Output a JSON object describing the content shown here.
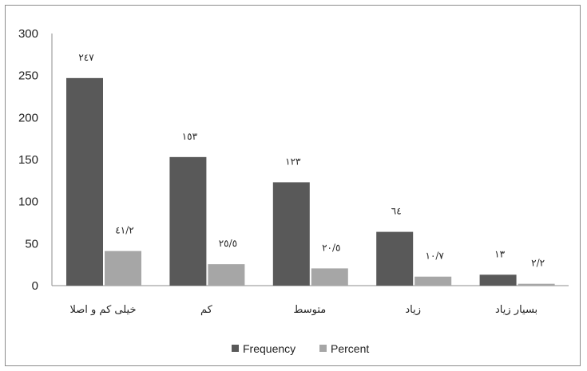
{
  "chart_data": {
    "type": "bar",
    "categories": [
      "خیلی کم و اصلا",
      "کم",
      "متوسط",
      "زیاد",
      "بسیار زیاد"
    ],
    "series": [
      {
        "name": "Frequency",
        "values": [
          247,
          153,
          123,
          64,
          13
        ],
        "labels": [
          "٢٤٧",
          "١٥٣",
          "١٢٣",
          "٦٤",
          "١٣"
        ],
        "color": "#595959"
      },
      {
        "name": "Percent",
        "values": [
          41.2,
          25.5,
          20.5,
          10.7,
          2.2
        ],
        "labels": [
          "٤١/٢",
          "٢٥/٥",
          "٢٠/٥",
          "١٠/٧",
          "٢/٢"
        ],
        "color": "#a6a6a6"
      }
    ],
    "yticks": [
      "0",
      "50",
      "100",
      "150",
      "200",
      "250",
      "300"
    ],
    "ylim": [
      0,
      300
    ],
    "grid": false,
    "legend_position": "bottom"
  }
}
